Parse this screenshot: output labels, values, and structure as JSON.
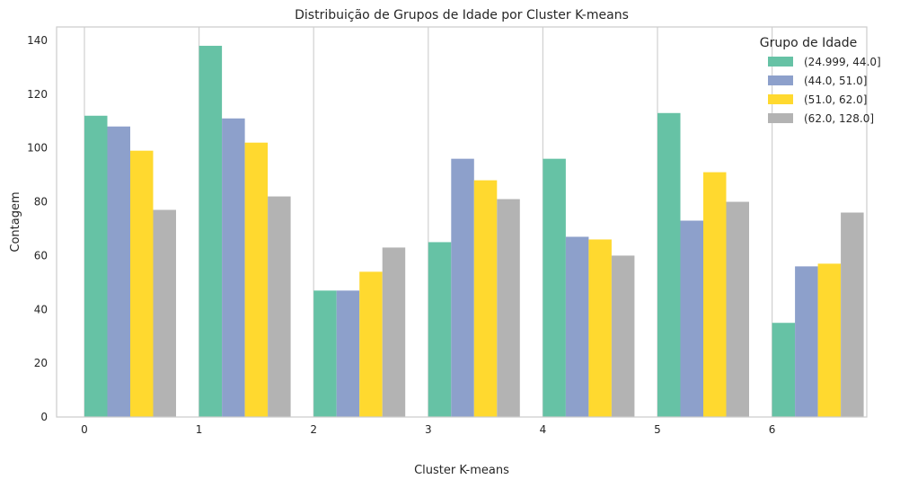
{
  "chart_data": {
    "type": "bar",
    "title": "Distribuição de Grupos de Idade por Cluster K-means",
    "xlabel": "Cluster K-means",
    "ylabel": "Contagem",
    "categories": [
      "0",
      "1",
      "2",
      "3",
      "4",
      "5",
      "6"
    ],
    "ylim": [
      0,
      145
    ],
    "yticks": [
      0,
      20,
      40,
      60,
      80,
      100,
      120,
      140
    ],
    "grid": "vertical",
    "legend": {
      "title": "Grupo de Idade",
      "placement": "top-right"
    },
    "series": [
      {
        "name": "(24.999, 44.0]",
        "color": "#66c2a5",
        "values": [
          112,
          138,
          47,
          65,
          96,
          113,
          35
        ]
      },
      {
        "name": "(44.0, 51.0]",
        "color": "#8da0cb",
        "values": [
          108,
          111,
          47,
          96,
          67,
          73,
          56
        ]
      },
      {
        "name": "(51.0, 62.0]",
        "color": "#ffd92f",
        "values": [
          99,
          102,
          54,
          88,
          66,
          91,
          57
        ]
      },
      {
        "name": "(62.0, 128.0]",
        "color": "#b3b3b3",
        "values": [
          77,
          82,
          63,
          81,
          60,
          80,
          76
        ]
      }
    ]
  }
}
